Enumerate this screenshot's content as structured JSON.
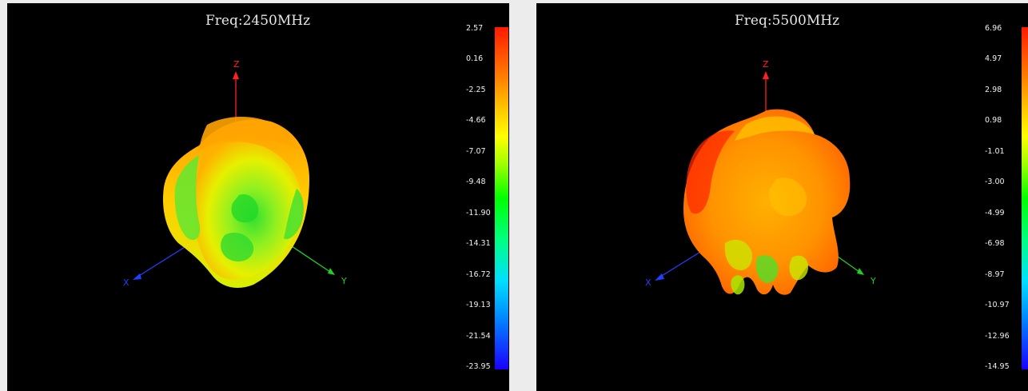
{
  "panels": [
    {
      "title": "Freq:2450MHz",
      "axis_labels": {
        "z": "Z",
        "x": "X",
        "y": "Y"
      },
      "colorbar_ticks": [
        "2.57",
        "0.16",
        "-2.25",
        "-4.66",
        "-7.07",
        "-9.48",
        "-11.90",
        "-14.31",
        "-16.72",
        "-19.13",
        "-21.54",
        "-23.95"
      ]
    },
    {
      "title": "Freq:5500MHz",
      "axis_labels": {
        "z": "Z",
        "x": "X",
        "y": "Y"
      },
      "colorbar_ticks": [
        "6.96",
        "4.97",
        "2.98",
        "0.98",
        "-1.01",
        "-3.00",
        "-4.99",
        "-6.98",
        "-8.97",
        "-10.97",
        "-12.96",
        "-14.95"
      ]
    }
  ],
  "colors": {
    "background": "#000000",
    "page": "#ececec",
    "z_axis": "#ff2020",
    "x_axis": "#2040ff",
    "y_axis": "#20d020"
  }
}
